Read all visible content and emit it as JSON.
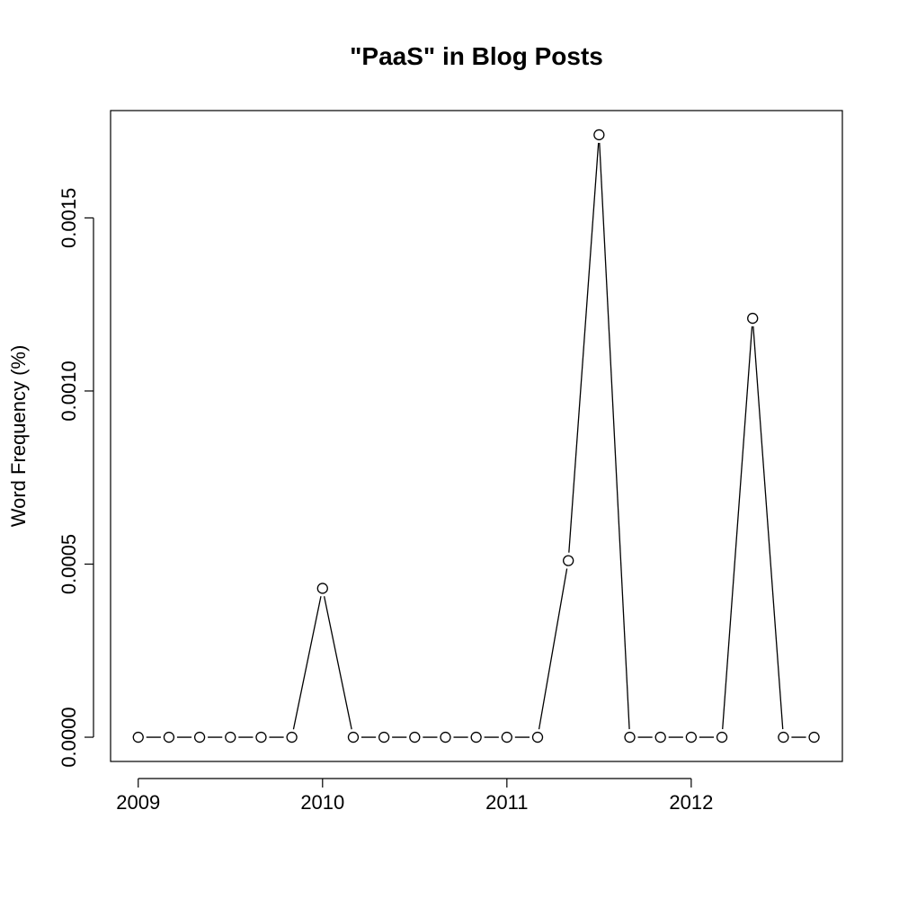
{
  "chart_data": {
    "type": "line",
    "title": "\"PaaS\" in Blog Posts",
    "xlabel": "",
    "ylabel": "Word Frequency (%)",
    "xlim": [
      2008.85,
      2012.82
    ],
    "ylim": [
      -7e-05,
      0.00181
    ],
    "x_ticks": [
      {
        "value": 2009,
        "label": "2009"
      },
      {
        "value": 2010,
        "label": "2010"
      },
      {
        "value": 2011,
        "label": "2011"
      },
      {
        "value": 2012,
        "label": "2012"
      }
    ],
    "y_ticks": [
      {
        "value": 0.0,
        "label": "0.0000"
      },
      {
        "value": 0.0005,
        "label": "0.0005"
      },
      {
        "value": 0.001,
        "label": "0.0010"
      },
      {
        "value": 0.0015,
        "label": "0.0015"
      }
    ],
    "grid": false,
    "legend": "none",
    "marker": "open-circle",
    "line_color": "#000000",
    "series": [
      {
        "x": [
          2009.0,
          2009.1667,
          2009.3333,
          2009.5,
          2009.6667,
          2009.8333,
          2010.0,
          2010.1667,
          2010.3333,
          2010.5,
          2010.6667,
          2010.8333,
          2011.0,
          2011.1667,
          2011.3333,
          2011.5,
          2011.6667,
          2011.8333,
          2012.0,
          2012.1667,
          2012.3333,
          2012.5,
          2012.6667
        ],
        "values": [
          0.0,
          0.0,
          0.0,
          0.0,
          0.0,
          0.0,
          0.00043,
          0.0,
          0.0,
          0.0,
          0.0,
          0.0,
          0.0,
          0.0,
          0.00051,
          0.00174,
          0.0,
          0.0,
          0.0,
          0.0,
          0.00121,
          0.0,
          0.0
        ]
      }
    ]
  }
}
